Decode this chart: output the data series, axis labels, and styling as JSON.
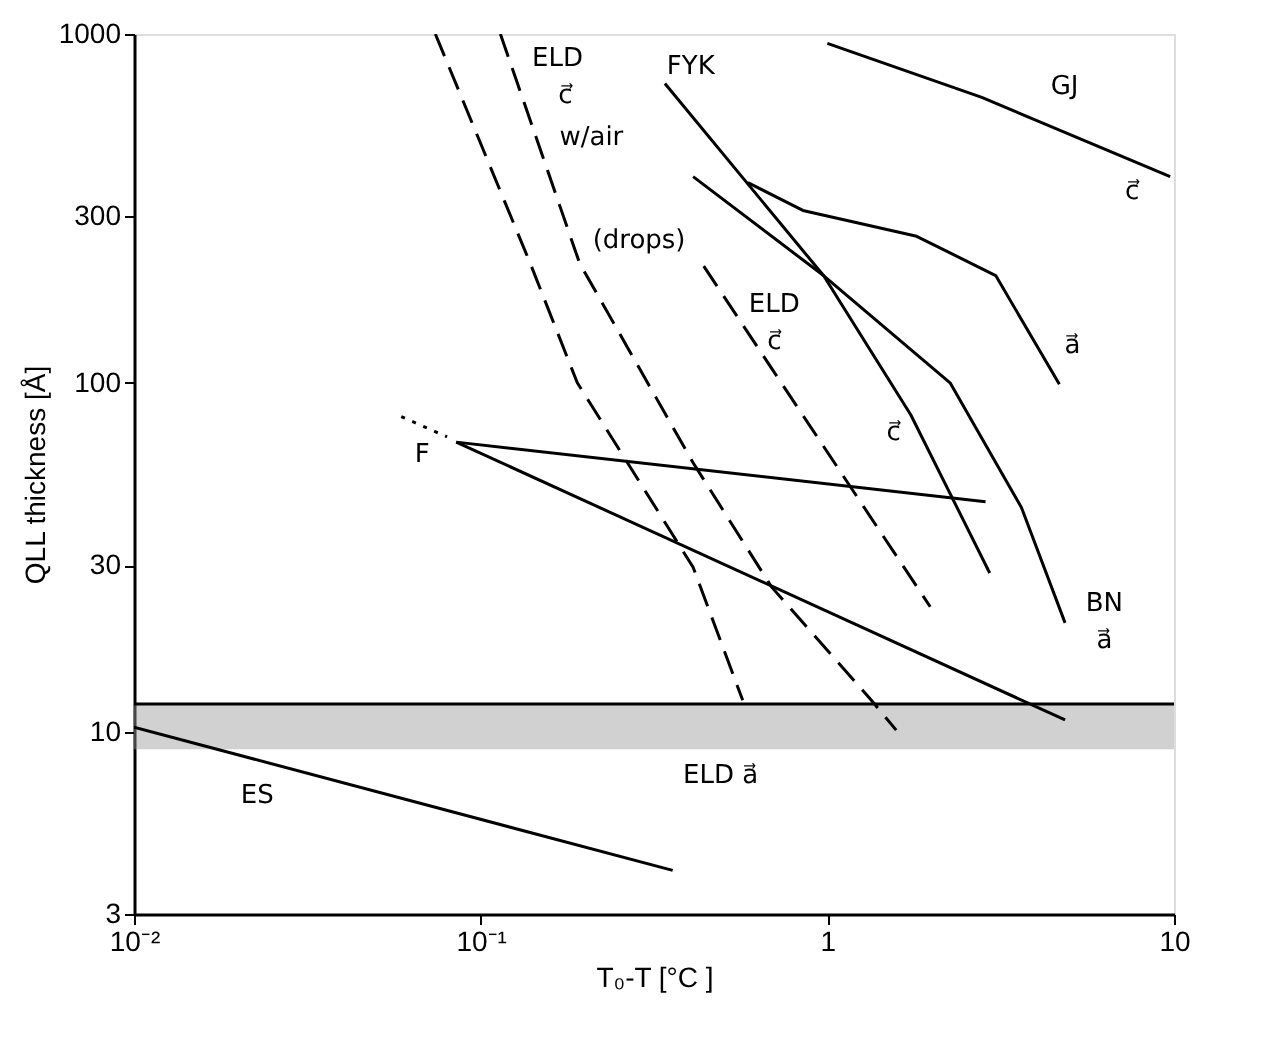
{
  "chart_data": {
    "type": "line",
    "xlabel": "T₀-T [°C ]",
    "ylabel": "QLL thickness [Å]",
    "log": "xy",
    "xlim": [
      0.01,
      10
    ],
    "ylim": [
      3,
      1000
    ],
    "xticks": [
      {
        "value": 0.01,
        "label": "10⁻²"
      },
      {
        "value": 0.1,
        "label": "10⁻¹"
      },
      1,
      10
    ],
    "yticks": [
      3,
      10,
      30,
      100,
      300,
      1000
    ],
    "grid": false,
    "series": [
      {
        "color": "#000000",
        "line_style": "solid",
        "x": [
          1,
          2.79,
          9.75
        ],
        "values": [
          940,
          658,
          390
        ]
      },
      {
        "color": "#000000",
        "line_style": "solid",
        "x": [
          0.59,
          0.85,
          1.81,
          3.06,
          4.67
        ],
        "values": [
          375,
          312,
          263,
          203,
          99
        ]
      },
      {
        "color": "#000000",
        "line_style": "solid",
        "x": [
          0.34,
          0.975,
          1.74,
          2.94
        ],
        "values": [
          721,
          203,
          81,
          28.5
        ]
      },
      {
        "color": "#000000",
        "line_style": "solid",
        "x": [
          0.41,
          0.975,
          2.26,
          3.63,
          4.85
        ],
        "values": [
          390,
          203,
          100,
          43.9,
          20.5
        ]
      },
      {
        "color": "#000000",
        "line_style": "solid",
        "x": [
          0.085,
          2.86
        ],
        "values": [
          67.6,
          45.6
        ]
      },
      {
        "color": "#000000",
        "line_style": "solid",
        "x": [
          0.085,
          4.85
        ],
        "values": [
          67.6,
          10.8
        ]
      },
      {
        "color": "#000000",
        "line_style": "dotted",
        "x": [
          0.059,
          0.08
        ],
        "values": [
          80,
          70
        ]
      },
      {
        "color": "#000000",
        "line_style": "solid",
        "x": [
          0.01,
          0.358
        ],
        "values": [
          10.3,
          4.0
        ]
      },
      {
        "color": "#000000",
        "line_style": "dashed",
        "x": [
          0.074,
          0.139,
          0.19,
          0.41,
          0.57
        ],
        "values": [
          1000,
          220,
          100,
          29.6,
          12.3
        ]
      },
      {
        "color": "#000000",
        "line_style": "dashed",
        "x": [
          0.114,
          0.193,
          0.41,
          0.69,
          1.34,
          1.58
        ],
        "values": [
          1000,
          220,
          59,
          26,
          12.3,
          10.1
        ]
      },
      {
        "color": "#000000",
        "line_style": "dashed",
        "x": [
          0.44,
          1.98
        ],
        "values": [
          216,
          22.8
        ]
      }
    ],
    "bands": [
      {
        "axis": "y",
        "from": 8.9,
        "to": 12,
        "color": "#999999"
      }
    ],
    "ref_lines": [
      {
        "axis": "y",
        "value": 12,
        "color": "#000000",
        "line_style": "solid"
      }
    ],
    "annotations": [
      "ELD",
      "c⃗",
      "w/air",
      "(drops)",
      "ELD",
      "c⃗",
      "FYK",
      "GJ",
      "c⃗",
      "a⃗",
      "c⃗",
      "BN",
      "a⃗",
      "F",
      "ES",
      "ELD a⃗"
    ]
  }
}
